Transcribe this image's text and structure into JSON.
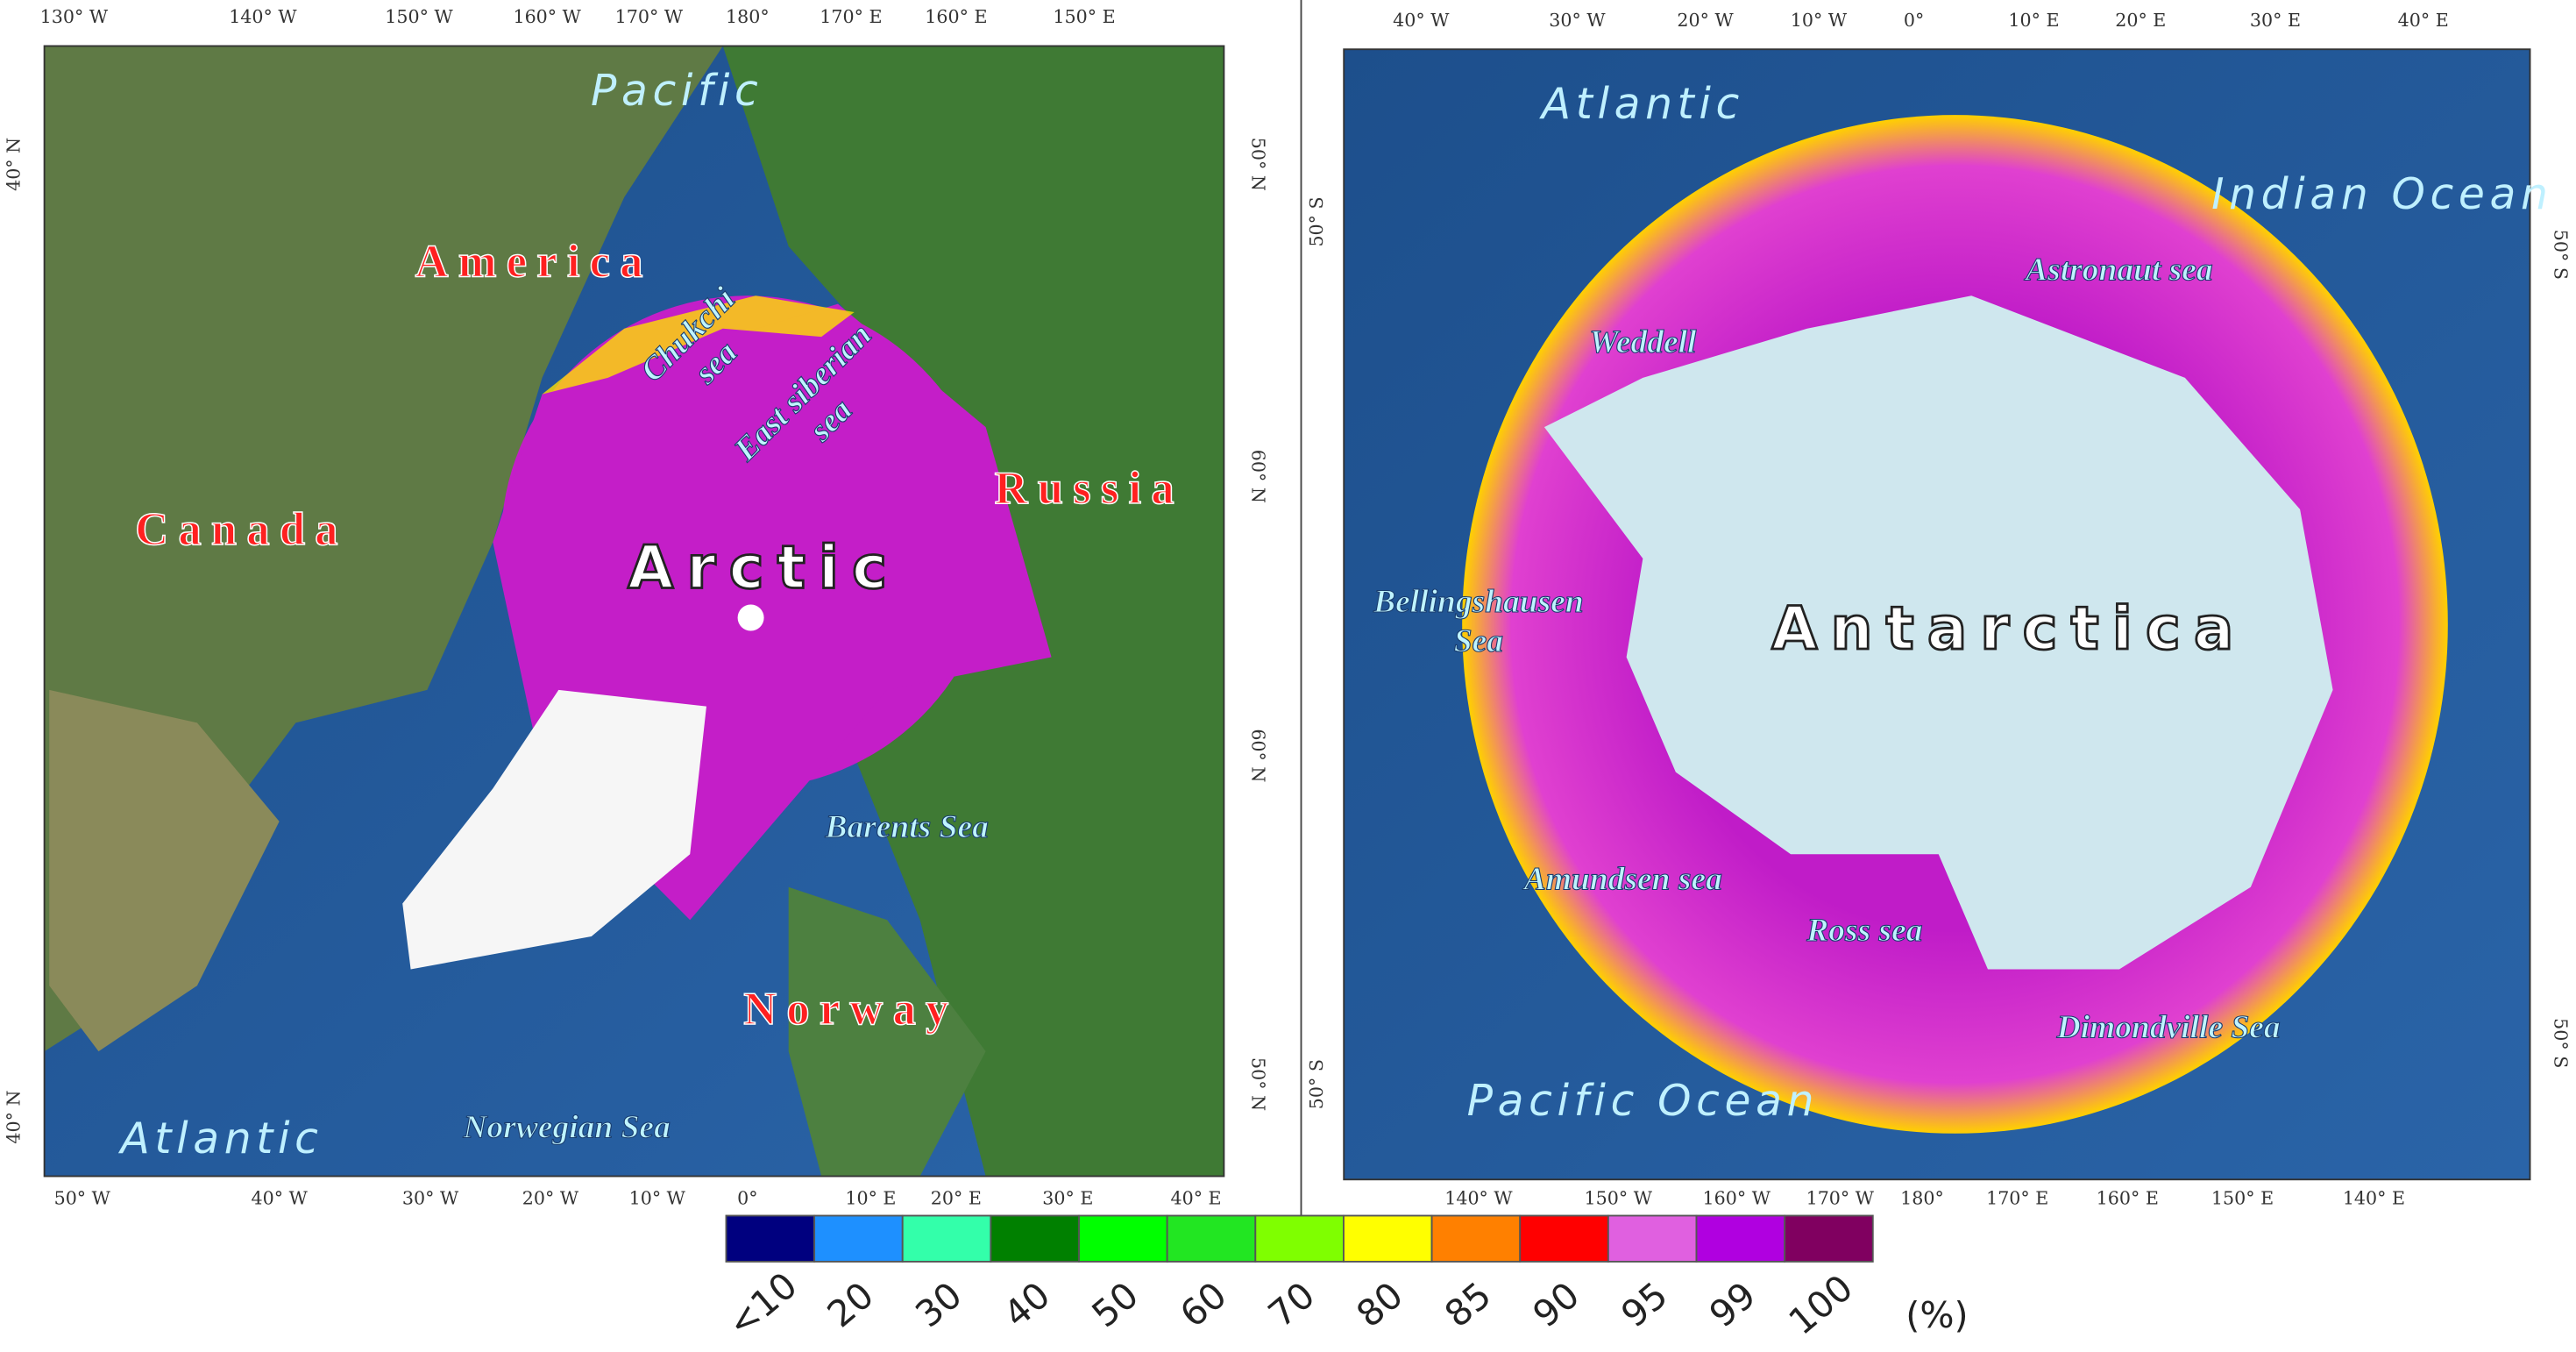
{
  "maps": [
    {
      "top_labels": [
        "130° W",
        "140° W",
        "150° W",
        "160° W",
        "170° W",
        "180°",
        "170° E",
        "160° E",
        "150° E"
      ],
      "bottom_labels": [
        "50° W",
        "40° W",
        "30° W",
        "20° W",
        "10° W",
        "0°",
        "10° E",
        "20° E",
        "30° E",
        "40° E"
      ],
      "left_labels": [
        "40° N",
        "40° N"
      ],
      "right_labels": [
        "50° N",
        "60° N",
        "60° N",
        "50° N"
      ],
      "places": [
        {
          "kind": "ocean",
          "lines": [
            "Pacific"
          ]
        },
        {
          "kind": "country",
          "lines": [
            "America"
          ]
        },
        {
          "kind": "sea",
          "lines": [
            "Chukchi",
            "sea"
          ]
        },
        {
          "kind": "sea",
          "lines": [
            "East siberian",
            "sea"
          ]
        },
        {
          "kind": "country",
          "lines": [
            "Russia"
          ]
        },
        {
          "kind": "country",
          "lines": [
            "Canada"
          ]
        },
        {
          "kind": "big",
          "lines": [
            "Arctic"
          ]
        },
        {
          "kind": "sea",
          "lines": [
            "Barents Sea"
          ]
        },
        {
          "kind": "country",
          "lines": [
            "Norway"
          ]
        },
        {
          "kind": "ocean",
          "lines": [
            "Atlantic"
          ]
        },
        {
          "kind": "sea",
          "lines": [
            "Norwegian Sea"
          ]
        }
      ]
    },
    {
      "top_labels": [
        "40° W",
        "30° W",
        "20° W",
        "10° W",
        "0°",
        "10° E",
        "20° E",
        "30° E",
        "40° E"
      ],
      "bottom_labels": [
        "140° W",
        "150° W",
        "160° W",
        "170° W",
        "180°",
        "170° E",
        "160° E",
        "150° E",
        "140° E"
      ],
      "left_labels": [
        "50° S",
        "50° S"
      ],
      "right_labels": [
        "50° S",
        "50° S"
      ],
      "places": [
        {
          "kind": "ocean",
          "lines": [
            "Atlantic"
          ]
        },
        {
          "kind": "ocean",
          "lines": [
            "Indian Ocean"
          ]
        },
        {
          "kind": "sea",
          "lines": [
            "Astronaut sea"
          ]
        },
        {
          "kind": "sea",
          "lines": [
            "Weddell"
          ]
        },
        {
          "kind": "sea",
          "lines": [
            "Bellingshausen",
            "Sea"
          ]
        },
        {
          "kind": "big",
          "lines": [
            "Antarctica"
          ]
        },
        {
          "kind": "sea",
          "lines": [
            "Amundsen sea"
          ]
        },
        {
          "kind": "sea",
          "lines": [
            "Ross sea"
          ]
        },
        {
          "kind": "sea",
          "lines": [
            "Dimondville Sea"
          ]
        },
        {
          "kind": "ocean",
          "lines": [
            "Pacific Ocean"
          ]
        }
      ]
    }
  ],
  "legend": {
    "items": [
      {
        "color": "#00007f",
        "label": "<10"
      },
      {
        "color": "#1e90ff",
        "label": "20"
      },
      {
        "color": "#33ffaa",
        "label": "30"
      },
      {
        "color": "#008000",
        "label": "40"
      },
      {
        "color": "#00ff00",
        "label": "50"
      },
      {
        "color": "#22e622",
        "label": "60"
      },
      {
        "color": "#7fff00",
        "label": "70"
      },
      {
        "color": "#ffff00",
        "label": "80"
      },
      {
        "color": "#ff8000",
        "label": "85"
      },
      {
        "color": "#ff0000",
        "label": "90"
      },
      {
        "color": "#e060e0",
        "label": "95"
      },
      {
        "color": "#b000e0",
        "label": "99"
      },
      {
        "color": "#800060",
        "label": "100"
      }
    ],
    "unit": "(%)"
  }
}
